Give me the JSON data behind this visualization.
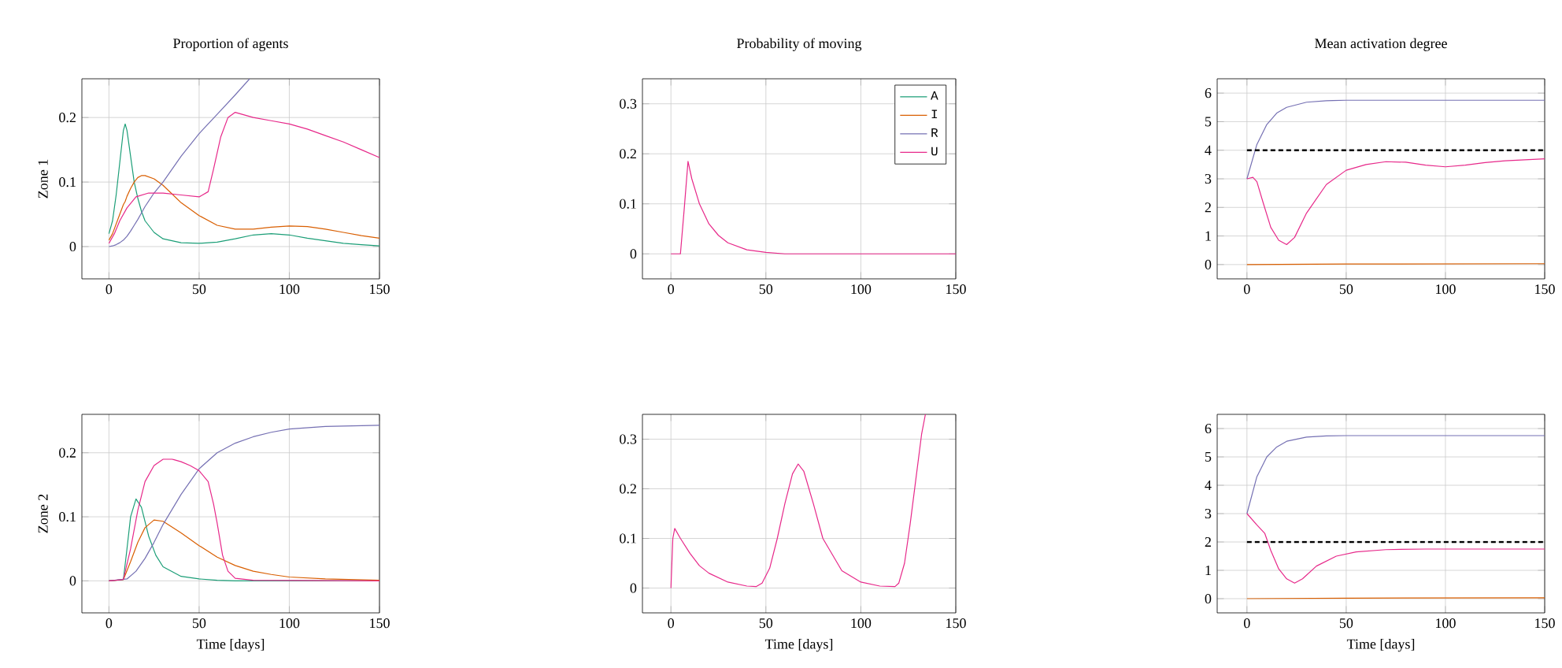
{
  "chart_data": [
    {
      "type": "line",
      "title": "Proportion of agents",
      "ylabel": "Zone 1",
      "xlim": [
        -15,
        150
      ],
      "ylim": [
        -0.05,
        0.26
      ],
      "xticks": [
        0,
        50,
        100,
        150
      ],
      "yticks": [
        0,
        0.1,
        0.2
      ],
      "grid": true,
      "series": [
        {
          "color": "#1b9e77",
          "x": [
            0,
            2,
            4,
            6,
            8,
            9,
            10,
            12,
            14,
            16,
            18,
            20,
            25,
            30,
            40,
            50,
            60,
            70,
            80,
            90,
            100,
            110,
            120,
            130,
            140,
            150
          ],
          "values": [
            0.02,
            0.04,
            0.08,
            0.13,
            0.18,
            0.19,
            0.18,
            0.14,
            0.1,
            0.075,
            0.055,
            0.04,
            0.022,
            0.012,
            0.006,
            0.005,
            0.007,
            0.012,
            0.018,
            0.02,
            0.018,
            0.013,
            0.009,
            0.005,
            0.003,
            0.001
          ]
        },
        {
          "color": "#d95f02",
          "x": [
            0,
            2,
            4,
            6,
            8,
            9,
            10,
            12,
            14,
            16,
            18,
            20,
            25,
            30,
            40,
            50,
            60,
            70,
            80,
            90,
            100,
            110,
            120,
            130,
            140,
            150
          ],
          "values": [
            0.01,
            0.02,
            0.035,
            0.05,
            0.065,
            0.07,
            0.078,
            0.09,
            0.1,
            0.107,
            0.11,
            0.11,
            0.105,
            0.095,
            0.068,
            0.048,
            0.033,
            0.027,
            0.027,
            0.03,
            0.032,
            0.031,
            0.027,
            0.022,
            0.017,
            0.013
          ]
        },
        {
          "color": "#7570b3",
          "x": [
            0,
            2,
            4,
            6,
            8,
            10,
            12,
            14,
            16,
            18,
            20,
            25,
            30,
            40,
            50,
            60,
            70,
            78
          ],
          "values": [
            0,
            0.001,
            0.003,
            0.006,
            0.01,
            0.016,
            0.024,
            0.033,
            0.042,
            0.052,
            0.062,
            0.083,
            0.1,
            0.14,
            0.175,
            0.205,
            0.235,
            0.26
          ]
        },
        {
          "color": "#e7298a",
          "x": [
            0,
            3,
            6,
            10,
            15,
            22,
            30,
            40,
            50,
            55,
            58,
            62,
            66,
            70,
            80,
            90,
            100,
            110,
            120,
            130,
            140,
            150
          ],
          "values": [
            0.005,
            0.02,
            0.04,
            0.06,
            0.077,
            0.083,
            0.083,
            0.08,
            0.077,
            0.085,
            0.12,
            0.17,
            0.2,
            0.208,
            0.2,
            0.195,
            0.19,
            0.182,
            0.172,
            0.162,
            0.15,
            0.138
          ]
        }
      ]
    },
    {
      "type": "line",
      "title": "Probability of moving",
      "xlim": [
        -15,
        150
      ],
      "ylim": [
        -0.05,
        0.35
      ],
      "xticks": [
        0,
        50,
        100,
        150
      ],
      "yticks": [
        0,
        0.1,
        0.2,
        0.3
      ],
      "grid": true,
      "legend": "top right",
      "series": [
        {
          "name": "A",
          "color": "#1b9e77"
        },
        {
          "name": "I",
          "color": "#d95f02"
        },
        {
          "name": "R",
          "color": "#7570b3"
        },
        {
          "name": "U",
          "color": "#e7298a",
          "x": [
            0,
            5,
            7,
            9,
            11,
            15,
            20,
            25,
            30,
            40,
            50,
            60,
            150
          ],
          "values": [
            0,
            0,
            0.09,
            0.185,
            0.15,
            0.1,
            0.06,
            0.037,
            0.022,
            0.008,
            0.003,
            0,
            0
          ]
        }
      ]
    },
    {
      "type": "line",
      "title": "Mean activation degree",
      "xlim": [
        -15,
        150
      ],
      "ylim": [
        -0.5,
        6.5
      ],
      "xticks": [
        0,
        50,
        100,
        150
      ],
      "yticks": [
        0,
        1,
        2,
        3,
        4,
        5,
        6
      ],
      "grid": true,
      "ref_lines": [
        {
          "axis": "y",
          "value": 4,
          "color": "#000000",
          "line_style": "dashed"
        }
      ],
      "series": [
        {
          "color": "#d95f02",
          "x": [
            0,
            50,
            150
          ],
          "values": [
            0,
            0.02,
            0.03
          ]
        },
        {
          "color": "#7570b3",
          "x": [
            0,
            5,
            10,
            15,
            20,
            30,
            40,
            50,
            150
          ],
          "values": [
            3,
            4.2,
            4.9,
            5.3,
            5.5,
            5.68,
            5.73,
            5.75,
            5.75
          ]
        },
        {
          "color": "#e7298a",
          "x": [
            0,
            3,
            5,
            8,
            12,
            16,
            20,
            24,
            30,
            40,
            50,
            60,
            70,
            80,
            90,
            100,
            110,
            120,
            130,
            150
          ],
          "values": [
            3,
            3.05,
            2.9,
            2.2,
            1.3,
            0.85,
            0.7,
            0.95,
            1.8,
            2.8,
            3.3,
            3.5,
            3.6,
            3.58,
            3.48,
            3.42,
            3.48,
            3.57,
            3.63,
            3.7
          ]
        }
      ]
    },
    {
      "type": "line",
      "ylabel": "Zone 2",
      "xlabel": "Time [days]",
      "xlim": [
        -15,
        150
      ],
      "ylim": [
        -0.05,
        0.26
      ],
      "xticks": [
        0,
        50,
        100,
        150
      ],
      "yticks": [
        0,
        0.1,
        0.2
      ],
      "grid": true,
      "series": [
        {
          "color": "#1b9e77",
          "x": [
            0,
            8,
            10,
            12,
            15,
            18,
            22,
            26,
            30,
            40,
            50,
            60,
            70,
            150
          ],
          "values": [
            0,
            0.002,
            0.05,
            0.1,
            0.128,
            0.115,
            0.07,
            0.04,
            0.022,
            0.007,
            0.003,
            0.001,
            0,
            0
          ]
        },
        {
          "color": "#d95f02",
          "x": [
            0,
            8,
            12,
            16,
            20,
            25,
            30,
            40,
            50,
            60,
            70,
            80,
            90,
            100,
            120,
            150
          ],
          "values": [
            0,
            0.002,
            0.03,
            0.06,
            0.083,
            0.095,
            0.093,
            0.075,
            0.055,
            0.037,
            0.024,
            0.015,
            0.01,
            0.006,
            0.003,
            0.001
          ]
        },
        {
          "color": "#7570b3",
          "x": [
            0,
            10,
            15,
            20,
            25,
            30,
            40,
            50,
            60,
            70,
            80,
            90,
            100,
            120,
            150
          ],
          "values": [
            0,
            0.003,
            0.015,
            0.035,
            0.06,
            0.088,
            0.135,
            0.175,
            0.2,
            0.215,
            0.225,
            0.232,
            0.237,
            0.241,
            0.243
          ]
        },
        {
          "color": "#e7298a",
          "x": [
            0,
            8,
            12,
            16,
            20,
            25,
            30,
            35,
            40,
            45,
            50,
            55,
            58,
            60,
            63,
            66,
            70,
            80,
            150
          ],
          "values": [
            0,
            0.002,
            0.05,
            0.11,
            0.155,
            0.18,
            0.19,
            0.19,
            0.186,
            0.18,
            0.172,
            0.155,
            0.12,
            0.09,
            0.04,
            0.015,
            0.004,
            0.001,
            0
          ]
        }
      ]
    },
    {
      "type": "line",
      "xlabel": "Time [days]",
      "xlim": [
        -15,
        150
      ],
      "ylim": [
        -0.05,
        0.35
      ],
      "xticks": [
        0,
        50,
        100,
        150
      ],
      "yticks": [
        0,
        0.1,
        0.2,
        0.3
      ],
      "grid": true,
      "series": [
        {
          "color": "#e7298a",
          "x": [
            0,
            1,
            2,
            5,
            10,
            15,
            20,
            30,
            40,
            45,
            48,
            52,
            56,
            60,
            64,
            67,
            70,
            75,
            80,
            90,
            100,
            110,
            118,
            120,
            123,
            126,
            129,
            132,
            134
          ],
          "values": [
            0,
            0.1,
            0.12,
            0.1,
            0.07,
            0.045,
            0.03,
            0.012,
            0.004,
            0.003,
            0.01,
            0.04,
            0.1,
            0.17,
            0.23,
            0.25,
            0.235,
            0.17,
            0.1,
            0.035,
            0.012,
            0.004,
            0.003,
            0.01,
            0.05,
            0.13,
            0.22,
            0.31,
            0.35
          ]
        }
      ]
    },
    {
      "type": "line",
      "xlabel": "Time [days]",
      "xlim": [
        -15,
        150
      ],
      "ylim": [
        -0.5,
        6.5
      ],
      "xticks": [
        0,
        50,
        100,
        150
      ],
      "yticks": [
        0,
        1,
        2,
        3,
        4,
        5,
        6
      ],
      "grid": true,
      "ref_lines": [
        {
          "axis": "y",
          "value": 2,
          "color": "#000000",
          "line_style": "dashed"
        }
      ],
      "series": [
        {
          "color": "#d95f02",
          "x": [
            0,
            50,
            150
          ],
          "values": [
            0,
            0.02,
            0.03
          ]
        },
        {
          "color": "#7570b3",
          "x": [
            0,
            5,
            10,
            15,
            20,
            30,
            40,
            50,
            150
          ],
          "values": [
            3,
            4.3,
            5,
            5.35,
            5.55,
            5.7,
            5.74,
            5.75,
            5.75
          ]
        },
        {
          "color": "#e7298a",
          "x": [
            0,
            5,
            9,
            12,
            16,
            20,
            24,
            28,
            35,
            45,
            55,
            70,
            90,
            150
          ],
          "values": [
            3,
            2.6,
            2.3,
            1.7,
            1.05,
            0.7,
            0.55,
            0.7,
            1.15,
            1.5,
            1.65,
            1.73,
            1.75,
            1.75
          ]
        }
      ]
    }
  ]
}
